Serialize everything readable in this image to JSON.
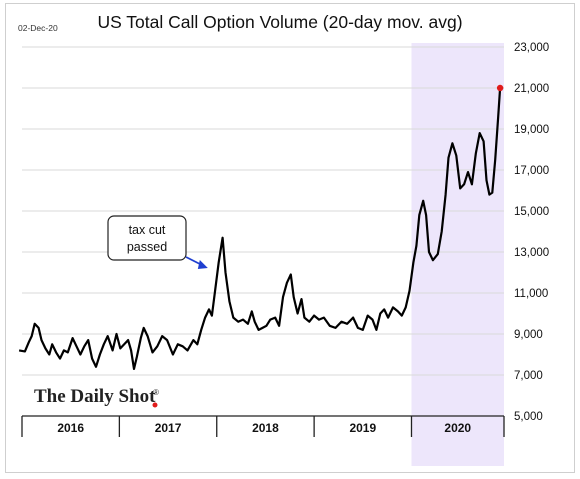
{
  "date_stamp": "02-Dec-20",
  "brand": "The Daily Shot",
  "brand_mark": "®",
  "colors": {
    "line": "#000000",
    "highlight_band": "#ede6fb",
    "end_dot": "#e01b1b",
    "arrow": "#1f3fd0",
    "grid": "#d9d9d9"
  },
  "annotation": {
    "line1": "tax cut",
    "line2": "passed",
    "points_to_x": 2017.97
  },
  "chart_data": {
    "type": "line",
    "title": "US Total Call Option Volume (20-day mov. avg)",
    "xlabel": "",
    "ylabel": "",
    "ylim": [
      5000,
      23000
    ],
    "xlim": [
      2016.0,
      2020.95
    ],
    "y_ticks": [
      5000,
      7000,
      9000,
      11000,
      13000,
      15000,
      17000,
      19000,
      21000,
      23000
    ],
    "y_tick_labels": [
      "5,000",
      "7,000",
      "9,000",
      "11,000",
      "13,000",
      "15,000",
      "17,000",
      "19,000",
      "21,000",
      "23,000"
    ],
    "year_labels": [
      "2016",
      "2017",
      "2018",
      "2019",
      "2020"
    ],
    "highlight": {
      "from": 2020.0,
      "to": 2020.95
    },
    "grid": true,
    "series": [
      {
        "points": [
          [
            2015.97,
            8200
          ],
          [
            2016.03,
            8150
          ],
          [
            2016.07,
            8600
          ],
          [
            2016.1,
            8900
          ],
          [
            2016.13,
            9500
          ],
          [
            2016.17,
            9300
          ],
          [
            2016.2,
            8700
          ],
          [
            2016.24,
            8300
          ],
          [
            2016.28,
            8000
          ],
          [
            2016.31,
            8500
          ],
          [
            2016.35,
            8100
          ],
          [
            2016.39,
            7800
          ],
          [
            2016.43,
            8200
          ],
          [
            2016.47,
            8100
          ],
          [
            2016.52,
            8800
          ],
          [
            2016.56,
            8400
          ],
          [
            2016.6,
            8000
          ],
          [
            2016.64,
            8400
          ],
          [
            2016.68,
            8700
          ],
          [
            2016.72,
            7800
          ],
          [
            2016.76,
            7400
          ],
          [
            2016.8,
            8000
          ],
          [
            2016.84,
            8500
          ],
          [
            2016.88,
            8900
          ],
          [
            2016.93,
            8200
          ],
          [
            2016.97,
            9000
          ],
          [
            2017.01,
            8300
          ],
          [
            2017.05,
            8500
          ],
          [
            2017.09,
            8700
          ],
          [
            2017.12,
            8200
          ],
          [
            2017.15,
            7300
          ],
          [
            2017.18,
            7900
          ],
          [
            2017.22,
            8800
          ],
          [
            2017.25,
            9300
          ],
          [
            2017.29,
            8900
          ],
          [
            2017.34,
            8100
          ],
          [
            2017.39,
            8400
          ],
          [
            2017.44,
            8900
          ],
          [
            2017.49,
            8700
          ],
          [
            2017.55,
            8000
          ],
          [
            2017.6,
            8500
          ],
          [
            2017.65,
            8400
          ],
          [
            2017.7,
            8200
          ],
          [
            2017.76,
            8700
          ],
          [
            2017.8,
            8500
          ],
          [
            2017.84,
            9200
          ],
          [
            2017.88,
            9800
          ],
          [
            2017.92,
            10200
          ],
          [
            2017.95,
            9900
          ],
          [
            2017.98,
            11000
          ],
          [
            2018.02,
            12500
          ],
          [
            2018.06,
            13700
          ],
          [
            2018.09,
            12000
          ],
          [
            2018.13,
            10600
          ],
          [
            2018.17,
            9800
          ],
          [
            2018.22,
            9600
          ],
          [
            2018.27,
            9700
          ],
          [
            2018.32,
            9500
          ],
          [
            2018.36,
            10100
          ],
          [
            2018.39,
            9600
          ],
          [
            2018.43,
            9200
          ],
          [
            2018.47,
            9300
          ],
          [
            2018.51,
            9400
          ],
          [
            2018.55,
            9700
          ],
          [
            2018.6,
            9800
          ],
          [
            2018.64,
            9400
          ],
          [
            2018.68,
            10800
          ],
          [
            2018.72,
            11500
          ],
          [
            2018.76,
            11900
          ],
          [
            2018.79,
            10800
          ],
          [
            2018.83,
            10000
          ],
          [
            2018.87,
            10700
          ],
          [
            2018.9,
            9800
          ],
          [
            2018.95,
            9600
          ],
          [
            2019.0,
            9900
          ],
          [
            2019.05,
            9700
          ],
          [
            2019.1,
            9800
          ],
          [
            2019.16,
            9400
          ],
          [
            2019.22,
            9300
          ],
          [
            2019.28,
            9600
          ],
          [
            2019.34,
            9500
          ],
          [
            2019.4,
            9800
          ],
          [
            2019.45,
            9300
          ],
          [
            2019.5,
            9200
          ],
          [
            2019.55,
            9900
          ],
          [
            2019.6,
            9700
          ],
          [
            2019.64,
            9200
          ],
          [
            2019.68,
            10000
          ],
          [
            2019.72,
            10200
          ],
          [
            2019.76,
            9800
          ],
          [
            2019.81,
            10300
          ],
          [
            2019.86,
            10100
          ],
          [
            2019.9,
            9900
          ],
          [
            2019.94,
            10300
          ],
          [
            2019.98,
            11100
          ],
          [
            2020.02,
            12500
          ],
          [
            2020.05,
            13300
          ],
          [
            2020.08,
            14800
          ],
          [
            2020.12,
            15500
          ],
          [
            2020.15,
            14800
          ],
          [
            2020.18,
            13000
          ],
          [
            2020.22,
            12600
          ],
          [
            2020.27,
            12900
          ],
          [
            2020.31,
            14000
          ],
          [
            2020.35,
            15800
          ],
          [
            2020.38,
            17600
          ],
          [
            2020.42,
            18300
          ],
          [
            2020.46,
            17700
          ],
          [
            2020.5,
            16100
          ],
          [
            2020.54,
            16300
          ],
          [
            2020.58,
            16900
          ],
          [
            2020.62,
            16300
          ],
          [
            2020.66,
            17800
          ],
          [
            2020.7,
            18800
          ],
          [
            2020.74,
            18400
          ],
          [
            2020.77,
            16500
          ],
          [
            2020.8,
            15800
          ],
          [
            2020.83,
            15900
          ],
          [
            2020.86,
            17500
          ],
          [
            2020.89,
            19600
          ],
          [
            2020.91,
            21000
          ]
        ]
      }
    ]
  }
}
